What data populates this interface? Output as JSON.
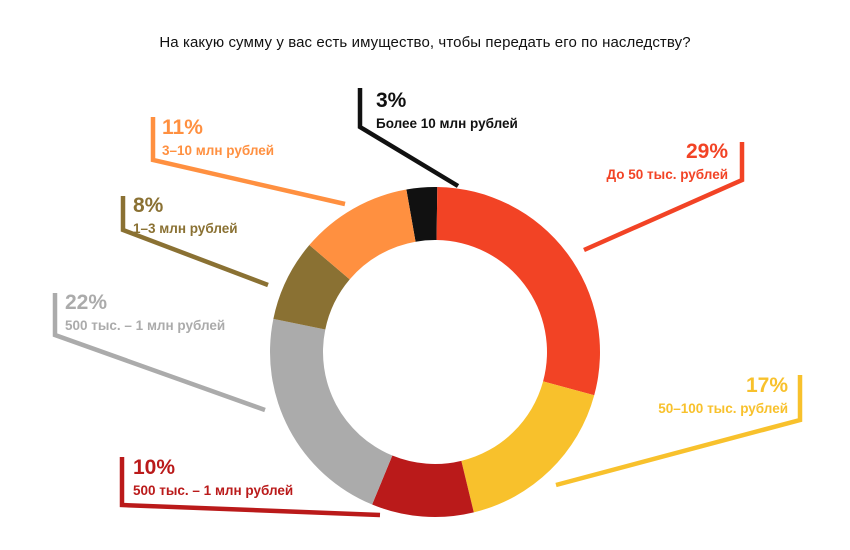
{
  "title": "На какую сумму у вас есть имущество, чтобы передать его по наследству?",
  "chart_data": {
    "type": "pie",
    "title": "На какую сумму у вас есть имущество, чтобы передать его по наследству?",
    "series": [
      {
        "name": "Более 10 млн рублей",
        "label": "3%",
        "value": 3,
        "color": "#111111"
      },
      {
        "name": "До 50 тыс. рублей",
        "label": "29%",
        "value": 29,
        "color": "#f24325"
      },
      {
        "name": "50–100 тыс. рублей",
        "label": "17%",
        "value": 17,
        "color": "#f8c12c"
      },
      {
        "name": "500 тыс. – 1 млн рублей",
        "label": "10%",
        "value": 10,
        "color": "#ba1a1a"
      },
      {
        "name": "500 тыс. – 1 млн рублей",
        "label": "22%",
        "value": 22,
        "color": "#ababab"
      },
      {
        "name": "1–3 млн рублей",
        "label": "8%",
        "value": 8,
        "color": "#8a7133"
      },
      {
        "name": "3–10 млн рублей",
        "label": "11%",
        "value": 11,
        "color": "#ff9040"
      }
    ]
  }
}
